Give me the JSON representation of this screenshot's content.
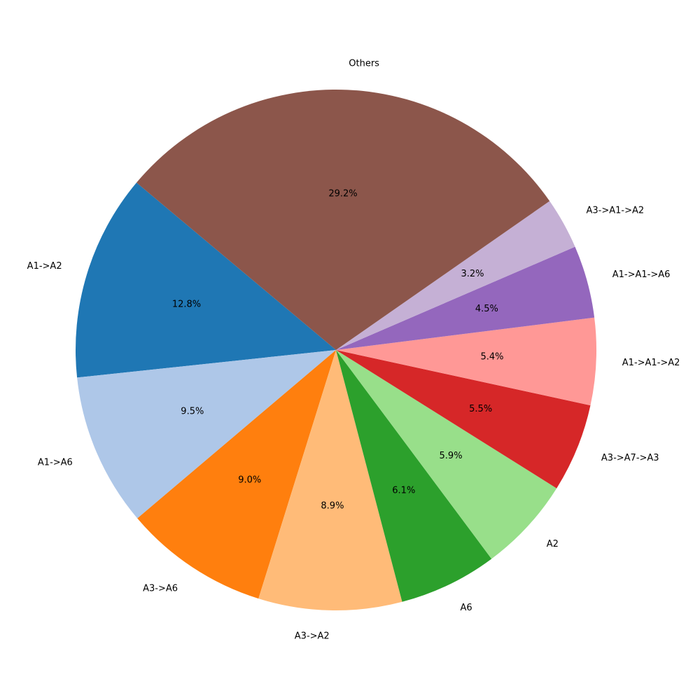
{
  "chart_data": {
    "type": "pie",
    "categories": [
      "A1->A2",
      "A1->A6",
      "A3->A6",
      "A3->A2",
      "A6",
      "A2",
      "A3->A7->A3",
      "A1->A1->A2",
      "A1->A1->A6",
      "A3->A1->A2",
      "Others"
    ],
    "values": [
      12.8,
      9.5,
      9.0,
      8.9,
      6.1,
      5.9,
      5.5,
      5.4,
      4.5,
      3.2,
      29.2
    ],
    "value_labels": [
      "12.8%",
      "9.5%",
      "9.0%",
      "8.9%",
      "6.1%",
      "5.9%",
      "5.5%",
      "5.4%",
      "4.5%",
      "3.2%",
      "29.2%"
    ],
    "colors": [
      "#1f77b4",
      "#aec7e8",
      "#ff7f0e",
      "#ffbb78",
      "#2ca02c",
      "#98df8a",
      "#d62728",
      "#ff9896",
      "#9467bd",
      "#c5b0d5",
      "#8c564b"
    ]
  }
}
